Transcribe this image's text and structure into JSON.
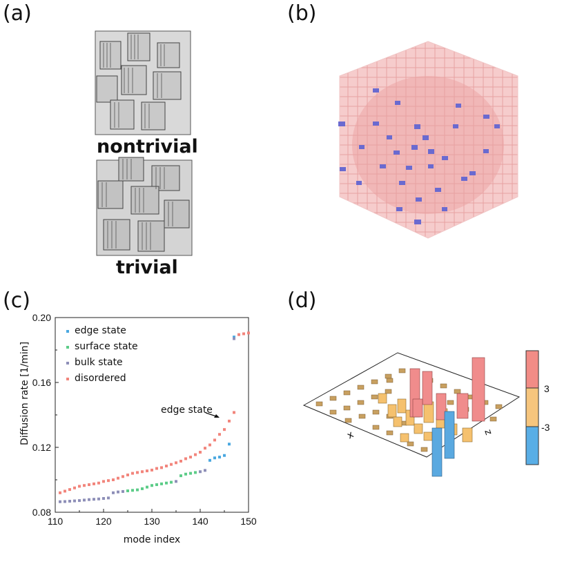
{
  "panels": {
    "a": {
      "label": "(a)",
      "top_caption": "nontrivial",
      "bottom_caption": "trivial"
    },
    "b": {
      "label": "(b)"
    },
    "c": {
      "label": "(c)"
    },
    "d": {
      "label": "(d)",
      "axis_x": "x",
      "axis_z": "z",
      "colorbar_ticks": [
        "3",
        "-3"
      ],
      "colors": {
        "high": "#f08c8c",
        "mid": "#f5c16e",
        "low": "#5aa9e0"
      }
    }
  },
  "chart_data": {
    "type": "scatter",
    "xlabel": "mode index",
    "ylabel": "Diffusion rate [1/min]",
    "xlim": [
      110,
      150
    ],
    "ylim": [
      0.08,
      0.2
    ],
    "xticks": [
      "110",
      "120",
      "130",
      "140",
      "150"
    ],
    "yticks": [
      "0.08",
      "0.12",
      "0.16",
      "0.20"
    ],
    "annotation": {
      "text": "edge state",
      "x": 145,
      "y": 0.1362
    },
    "series": [
      {
        "name": "edge state",
        "color": "#4aa8e0",
        "x": [
          142,
          143,
          144,
          145,
          146,
          147
        ],
        "y": [
          0.112,
          0.1135,
          0.114,
          0.115,
          0.122,
          0.188
        ]
      },
      {
        "name": "surface state",
        "color": "#5ccc88",
        "x": [
          125,
          126,
          127,
          128,
          129,
          130,
          131,
          132,
          133,
          134,
          136,
          137,
          138,
          139
        ],
        "y": [
          0.0932,
          0.0935,
          0.0938,
          0.0945,
          0.0955,
          0.0965,
          0.097,
          0.0975,
          0.098,
          0.0985,
          0.1025,
          0.1035,
          0.104,
          0.1045
        ]
      },
      {
        "name": "bulk state",
        "color": "#8e8fb8",
        "x": [
          111,
          112,
          113,
          114,
          115,
          116,
          117,
          118,
          119,
          120,
          121,
          122,
          123,
          124,
          135,
          140,
          141,
          147
        ],
        "y": [
          0.0865,
          0.0866,
          0.0868,
          0.087,
          0.0872,
          0.0875,
          0.0878,
          0.088,
          0.0882,
          0.0885,
          0.0888,
          0.092,
          0.0925,
          0.0928,
          0.099,
          0.105,
          0.1058,
          0.187
        ]
      },
      {
        "name": "disordered",
        "color": "#f2857c",
        "x": [
          111,
          112,
          113,
          114,
          115,
          116,
          117,
          118,
          119,
          120,
          121,
          122,
          123,
          124,
          125,
          126,
          127,
          128,
          129,
          130,
          131,
          132,
          133,
          134,
          135,
          136,
          137,
          138,
          139,
          140,
          141,
          142,
          143,
          144,
          145,
          146,
          147,
          148,
          149,
          150
        ],
        "y": [
          0.092,
          0.093,
          0.094,
          0.095,
          0.096,
          0.0965,
          0.097,
          0.0975,
          0.098,
          0.099,
          0.0995,
          0.1,
          0.101,
          0.102,
          0.103,
          0.104,
          0.1045,
          0.105,
          0.1055,
          0.106,
          0.107,
          0.1075,
          0.1085,
          0.1095,
          0.1105,
          0.1115,
          0.113,
          0.114,
          0.1155,
          0.117,
          0.1195,
          0.1215,
          0.1245,
          0.128,
          0.131,
          0.1362,
          0.1415,
          0.1895,
          0.19,
          0.1905
        ]
      }
    ]
  }
}
